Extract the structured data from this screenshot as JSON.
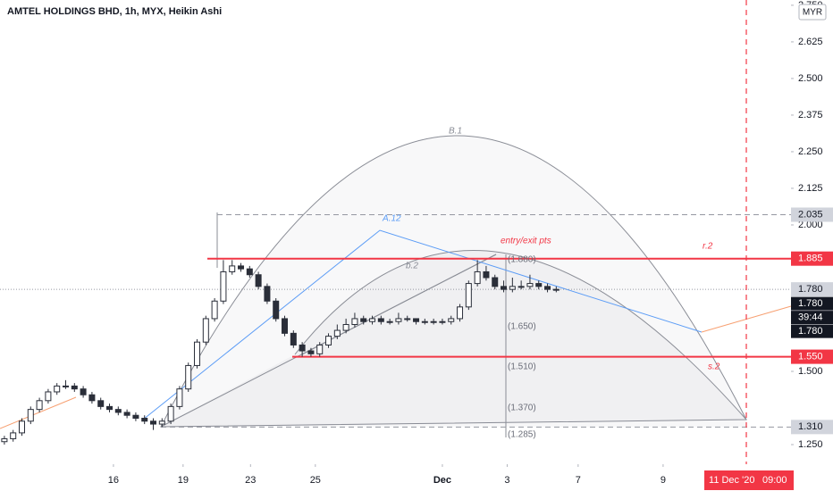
{
  "chart_data": {
    "type": "candlestick",
    "title": "AMTEL HOLDINGS BHD, 1h, MYX, Heikin Ashi",
    "currency": "MYR",
    "x": [
      0,
      1,
      2,
      3,
      4,
      5,
      6,
      7,
      8,
      9,
      10,
      11,
      12,
      13,
      14,
      15,
      16,
      17,
      18,
      19,
      20,
      21,
      22,
      23,
      24,
      25,
      26,
      27,
      28,
      29,
      30,
      31,
      32,
      33,
      34,
      35,
      36,
      37,
      38,
      39,
      40,
      41,
      42,
      43,
      44,
      45,
      46,
      47,
      48,
      49,
      50,
      51,
      52,
      53,
      54,
      55,
      56,
      57,
      58,
      59,
      60,
      61,
      62,
      63
    ],
    "open": [
      1.26,
      1.27,
      1.29,
      1.33,
      1.37,
      1.4,
      1.43,
      1.45,
      1.45,
      1.44,
      1.42,
      1.4,
      1.38,
      1.37,
      1.36,
      1.35,
      1.34,
      1.33,
      1.32,
      1.33,
      1.38,
      1.44,
      1.52,
      1.6,
      1.68,
      1.74,
      1.84,
      1.86,
      1.85,
      1.83,
      1.79,
      1.74,
      1.68,
      1.63,
      1.59,
      1.57,
      1.56,
      1.59,
      1.62,
      1.64,
      1.66,
      1.68,
      1.67,
      1.68,
      1.67,
      1.67,
      1.68,
      1.68,
      1.67,
      1.67,
      1.67,
      1.67,
      1.68,
      1.72,
      1.8,
      1.84,
      1.82,
      1.79,
      1.78,
      1.79,
      1.79,
      1.8,
      1.79,
      1.78
    ],
    "high": [
      1.28,
      1.3,
      1.34,
      1.38,
      1.41,
      1.44,
      1.46,
      1.47,
      1.46,
      1.45,
      1.43,
      1.41,
      1.39,
      1.38,
      1.37,
      1.36,
      1.35,
      1.34,
      1.34,
      1.39,
      1.45,
      1.53,
      1.61,
      1.69,
      1.75,
      1.88,
      1.88,
      1.87,
      1.86,
      1.84,
      1.8,
      1.75,
      1.69,
      1.64,
      1.6,
      1.58,
      1.6,
      1.63,
      1.66,
      1.68,
      1.7,
      1.69,
      1.69,
      1.69,
      1.68,
      1.7,
      1.69,
      1.68,
      1.68,
      1.68,
      1.68,
      1.69,
      1.73,
      1.81,
      1.88,
      1.86,
      1.83,
      1.81,
      1.82,
      1.81,
      1.83,
      1.81,
      1.8,
      1.79
    ],
    "low": [
      1.25,
      1.26,
      1.28,
      1.32,
      1.36,
      1.39,
      1.42,
      1.44,
      1.43,
      1.41,
      1.39,
      1.37,
      1.36,
      1.35,
      1.34,
      1.33,
      1.32,
      1.3,
      1.31,
      1.32,
      1.37,
      1.43,
      1.51,
      1.59,
      1.67,
      1.73,
      1.83,
      1.84,
      1.82,
      1.78,
      1.73,
      1.67,
      1.62,
      1.58,
      1.55,
      1.55,
      1.55,
      1.58,
      1.61,
      1.63,
      1.65,
      1.66,
      1.66,
      1.66,
      1.66,
      1.66,
      1.67,
      1.66,
      1.66,
      1.66,
      1.66,
      1.66,
      1.67,
      1.71,
      1.79,
      1.81,
      1.78,
      1.77,
      1.77,
      1.78,
      1.78,
      1.78,
      1.77,
      1.77
    ],
    "close": [
      1.27,
      1.29,
      1.33,
      1.37,
      1.4,
      1.43,
      1.45,
      1.45,
      1.44,
      1.42,
      1.4,
      1.38,
      1.37,
      1.36,
      1.35,
      1.34,
      1.33,
      1.32,
      1.33,
      1.38,
      1.44,
      1.52,
      1.6,
      1.68,
      1.74,
      1.84,
      1.86,
      1.85,
      1.83,
      1.79,
      1.74,
      1.68,
      1.63,
      1.59,
      1.57,
      1.56,
      1.59,
      1.62,
      1.64,
      1.66,
      1.68,
      1.67,
      1.68,
      1.67,
      1.67,
      1.68,
      1.68,
      1.67,
      1.67,
      1.67,
      1.67,
      1.68,
      1.72,
      1.8,
      1.84,
      1.82,
      1.79,
      1.78,
      1.79,
      1.79,
      1.8,
      1.79,
      1.78,
      1.78
    ],
    "up_color": "#ffffff",
    "down_color": "#2a2e39",
    "xlim": [
      -0.5,
      89.8
    ],
    "xticks": [
      {
        "value": 12.45,
        "label": "16"
      },
      {
        "value": 20.4,
        "label": "19"
      },
      {
        "value": 28.1,
        "label": "23"
      },
      {
        "value": 35.5,
        "label": "25"
      },
      {
        "value": 50,
        "label": "Dec"
      },
      {
        "value": 57.4,
        "label": "3"
      },
      {
        "value": 65.5,
        "label": "7"
      },
      {
        "value": 75.2,
        "label": "9"
      }
    ],
    "ylim": [
      1.183,
      2.768
    ],
    "yticks": [
      {
        "value": 2.75,
        "label": "2.750"
      },
      2.625,
      {
        "value": 2.5,
        "label": "2.500"
      },
      2.375,
      {
        "value": 2.25,
        "label": "2.250"
      },
      2.125,
      {
        "value": 2.0,
        "label": "2.000"
      },
      {
        "value": 1.5,
        "label": "1.500"
      },
      {
        "value": 1.25,
        "label": "1.250"
      }
    ],
    "levels": [
      {
        "value": 2.035,
        "color": "#9598a1",
        "style": "dashed"
      },
      {
        "value": 1.885,
        "color": "#f23645",
        "style": "solid"
      },
      {
        "value": 1.78,
        "label": "1.780",
        "color": "#9598a1",
        "style": "dotted"
      },
      {
        "value": 1.55,
        "label": "1.550",
        "color": "#f23645",
        "style": "solid"
      },
      {
        "value": 1.31,
        "label": "1.310",
        "color": "#9598a1",
        "style": "dashed"
      }
    ],
    "badges": [
      "1.780",
      "39:44",
      "1.780"
    ],
    "cursor": {
      "x": 84.7,
      "label": "11 Dec '20",
      "time": "09:00",
      "color": "#f23645"
    },
    "annotations": {
      "entry": "entry/exit pts",
      "r2": "r.2",
      "s2": "s.2",
      "a12": "A.12",
      "b1": "B.1",
      "b2": "b.2",
      "fib": [
        "(1.880)",
        "(1.650)",
        "(1.510)",
        "(1.370)",
        "(1.285)"
      ]
    }
  }
}
